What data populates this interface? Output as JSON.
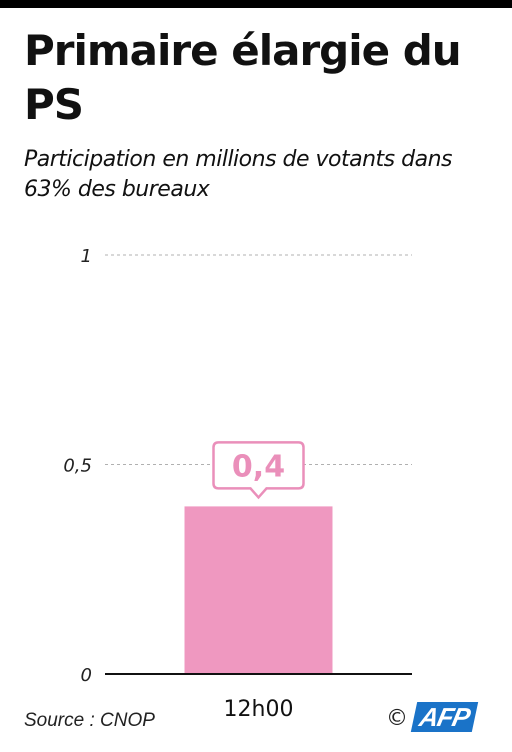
{
  "title": "Primaire élargie du PS",
  "subtitle": "Participation en millions de votants dans 63% des bureaux",
  "source": "Source : CNOP",
  "logo": {
    "icon": "copyright-icon",
    "text": "AFP"
  },
  "colors": {
    "bar": "#ef98c0",
    "label_border": "#ea8fba",
    "label_text": "#ea8fba",
    "grid": "#b0b0b0",
    "axis": "#111111"
  },
  "chart_data": {
    "type": "bar",
    "categories": [
      "12h00"
    ],
    "values": [
      0.4
    ],
    "value_labels": [
      "0,4"
    ],
    "ylim": [
      0,
      1
    ],
    "yticks": [
      0,
      0.5,
      1
    ],
    "ytick_labels": [
      "0",
      "0,5",
      "1"
    ],
    "grid": true,
    "xlabel": "",
    "ylabel": ""
  }
}
